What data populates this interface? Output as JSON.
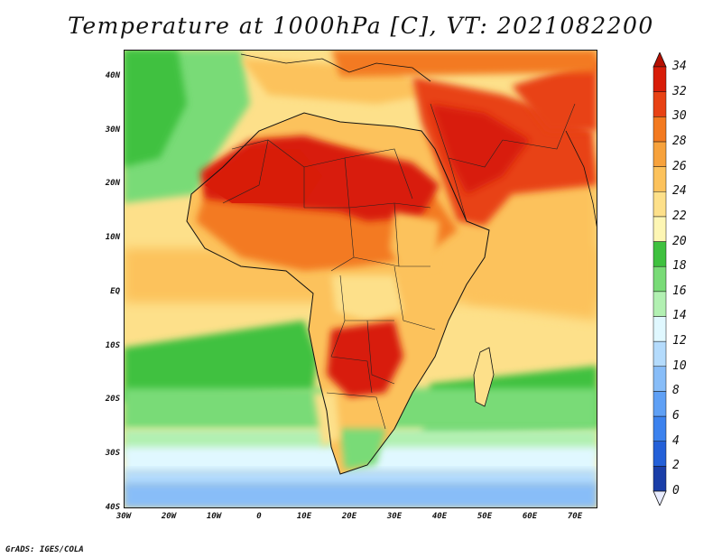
{
  "title": "Temperature at 1000hPa [C], VT: 2021082200",
  "credit": "GrADS: IGES/COLA",
  "map": {
    "lon_labels": [
      "30W",
      "20W",
      "10W",
      "0",
      "10E",
      "20E",
      "30E",
      "40E",
      "50E",
      "60E",
      "70E"
    ],
    "lat_labels": [
      "40N",
      "30N",
      "20N",
      "10N",
      "EQ",
      "10S",
      "20S",
      "30S",
      "40S"
    ],
    "lon_range": [
      -30,
      75
    ],
    "lat_range": [
      -40,
      45
    ]
  },
  "colorbar": {
    "levels": [
      "34",
      "32",
      "30",
      "28",
      "26",
      "24",
      "22",
      "20",
      "18",
      "16",
      "14",
      "12",
      "10",
      "8",
      "6",
      "4",
      "2",
      "0"
    ],
    "colors": [
      "#1c0a6e",
      "#1a3ea8",
      "#2460d8",
      "#3c82ee",
      "#5fa0f5",
      "#88bdf8",
      "#b4dbfc",
      "#e0f8ff",
      "#b2f0b2",
      "#79db77",
      "#3fc13f",
      "#fdf6b4",
      "#fde08a",
      "#fcc25c",
      "#f7a23c",
      "#f37a20",
      "#e84214",
      "#d81c08",
      "#b41002"
    ]
  }
}
